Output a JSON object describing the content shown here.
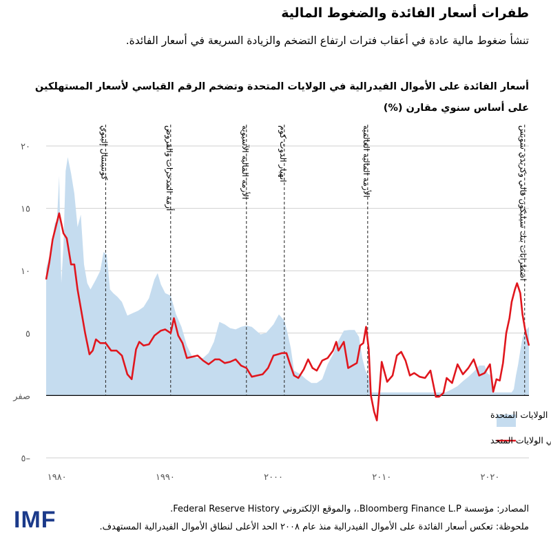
{
  "title": "طفرات أسعار الفائدة والضغوط المالية",
  "subtitle": "تنشأ ضغوط مالية عادة في أعقاب فترات ارتفاع التضخم والزيادة السريعة في أسعار الفائدة.",
  "sources": "المصادر: مؤسسة Bloomberg Finance L.P.، والموقع الإلكتروني Federal Reserve History.",
  "note": "ملحوظة: تعكس أسعار الفائدة على الأموال الفيدرالية منذ عام ٢٠٠٨ الحد الأعلى لنطاق الأموال الفيدرالية المستهدف.",
  "logo": "IMF",
  "colors": {
    "fed_funds_fill": "#c5dcef",
    "cpi_line": "#e0161d",
    "grid": "#cfcfcf",
    "event_line": "#333333"
  },
  "chart_data": {
    "type": "area",
    "title": "أسعار الفائدة على الأموال الفيدرالية في الولايات المتحدة وتضخم الرقم القياسي لأسعار المستهلكين على أساس سنوي مقارن (%)",
    "xlim": [
      1979.0,
      2023.6
    ],
    "ylim": [
      -5,
      20
    ],
    "yticks": [
      {
        "value": 20,
        "label": "٢٠"
      },
      {
        "value": 15,
        "label": "١٥"
      },
      {
        "value": 10,
        "label": "١٠"
      },
      {
        "value": 5,
        "label": "٥"
      },
      {
        "value": 0,
        "label": "صفر"
      },
      {
        "value": -5,
        "label": "٥–"
      }
    ],
    "xticks": [
      {
        "value": 1980,
        "label": "١٩٨٠"
      },
      {
        "value": 1990,
        "label": "١٩٩٠"
      },
      {
        "value": 2000,
        "label": "٢٠٠٠"
      },
      {
        "value": 2010,
        "label": "٢٠١٠"
      },
      {
        "value": 2020,
        "label": "٢٠٢٠"
      }
    ],
    "legend": [
      {
        "key": "fed_funds",
        "label": "أسعار الفائدة على الأموال الفيدرالية في الولايات المتحدة"
      },
      {
        "key": "cpi",
        "label": "الرقم القياسي لأسعار المستهلكين في الولايات المتحد"
      }
    ],
    "events": [
      {
        "year": 1984.5,
        "label": "كونتيننتال إلينوي"
      },
      {
        "year": 1990.5,
        "label": "أزمة المدخرات والقروض"
      },
      {
        "year": 1997.5,
        "label": "الأزمة المالية الآسيوية"
      },
      {
        "year": 2001.0,
        "label": "انهيار الدوت كوم"
      },
      {
        "year": 2008.7,
        "label": "الأزمة المالية العالمية"
      },
      {
        "year": 2023.2,
        "label": "اضطرابات بنك سيليكون فالي وكريدي سويس"
      }
    ],
    "series": [
      {
        "name": "fed_funds",
        "type": "area",
        "x": [
          1979.0,
          1979.4,
          1979.8,
          1980.0,
          1980.2,
          1980.4,
          1980.6,
          1980.8,
          1981.0,
          1981.3,
          1981.6,
          1981.9,
          1982.2,
          1982.5,
          1982.8,
          1983.1,
          1983.6,
          1984.0,
          1984.3,
          1984.6,
          1984.9,
          1985.2,
          1985.6,
          1986.0,
          1986.5,
          1987.0,
          1987.5,
          1988.0,
          1988.5,
          1989.0,
          1989.3,
          1989.6,
          1990.0,
          1990.5,
          1991.0,
          1991.5,
          1992.0,
          1992.5,
          1993.0,
          1993.5,
          1994.0,
          1994.5,
          1995.0,
          1995.5,
          1996.0,
          1996.5,
          1997.0,
          1997.5,
          1998.0,
          1998.8,
          1999.3,
          2000.0,
          2000.5,
          2001.0,
          2001.3,
          2001.6,
          2001.9,
          2002.5,
          2003.0,
          2003.5,
          2004.0,
          2004.5,
          2005.0,
          2005.5,
          2006.0,
          2006.5,
          2007.0,
          2007.5,
          2007.9,
          2008.2,
          2008.5,
          2008.8,
          2008.95,
          2015.9,
          2016.5,
          2017.0,
          2017.5,
          2018.0,
          2018.5,
          2019.0,
          2019.5,
          2019.8,
          2020.1,
          2020.25,
          2022.0,
          2022.2,
          2022.4,
          2022.6,
          2022.8,
          2023.0,
          2023.2,
          2023.6
        ],
        "y": [
          10.2,
          11.5,
          13.8,
          14.0,
          17.6,
          9.0,
          12.0,
          18.0,
          19.1,
          17.8,
          16.2,
          13.5,
          14.5,
          10.5,
          9.0,
          8.5,
          9.3,
          10.0,
          11.5,
          11.3,
          8.5,
          8.2,
          7.9,
          7.5,
          6.4,
          6.6,
          6.8,
          7.1,
          7.8,
          9.3,
          9.8,
          8.9,
          8.2,
          8.0,
          6.5,
          5.5,
          4.0,
          3.1,
          3.0,
          3.0,
          3.4,
          4.3,
          5.9,
          5.7,
          5.4,
          5.3,
          5.5,
          5.6,
          5.5,
          4.9,
          5.0,
          5.7,
          6.5,
          6.0,
          5.0,
          3.8,
          2.0,
          1.7,
          1.3,
          1.0,
          1.0,
          1.3,
          2.5,
          3.3,
          4.4,
          5.2,
          5.25,
          5.25,
          4.7,
          3.0,
          2.0,
          1.5,
          0.25,
          0.25,
          0.5,
          0.75,
          1.15,
          1.5,
          1.9,
          2.4,
          2.4,
          1.75,
          1.6,
          0.25,
          0.25,
          0.5,
          1.6,
          2.5,
          3.6,
          4.6,
          5.1,
          5.5
        ]
      },
      {
        "name": "cpi",
        "type": "line",
        "x": [
          1979.0,
          1979.3,
          1979.6,
          1980.0,
          1980.2,
          1980.6,
          1980.9,
          1981.3,
          1981.6,
          1981.9,
          1982.3,
          1982.6,
          1983.0,
          1983.3,
          1983.6,
          1984.0,
          1984.5,
          1985.0,
          1985.5,
          1986.0,
          1986.5,
          1986.9,
          1987.3,
          1987.6,
          1988.0,
          1988.5,
          1989.0,
          1989.6,
          1990.0,
          1990.5,
          1990.8,
          1991.2,
          1991.6,
          1992.0,
          1992.5,
          1993.0,
          1993.5,
          1994.0,
          1994.6,
          1995.0,
          1995.5,
          1996.0,
          1996.5,
          1997.0,
          1997.5,
          1998.0,
          1998.5,
          1999.0,
          1999.5,
          2000.0,
          2000.4,
          2000.8,
          2001.2,
          2001.5,
          2001.9,
          2002.3,
          2002.8,
          2003.2,
          2003.6,
          2004.0,
          2004.5,
          2005.0,
          2005.5,
          2005.8,
          2006.0,
          2006.5,
          2006.9,
          2007.3,
          2007.7,
          2008.0,
          2008.3,
          2008.55,
          2008.8,
          2009.0,
          2009.3,
          2009.55,
          2009.8,
          2010.0,
          2010.5,
          2011.0,
          2011.4,
          2011.8,
          2012.2,
          2012.6,
          2013.0,
          2013.5,
          2014.0,
          2014.5,
          2015.0,
          2015.3,
          2015.7,
          2016.0,
          2016.5,
          2017.0,
          2017.5,
          2018.0,
          2018.5,
          2019.0,
          2019.5,
          2020.0,
          2020.3,
          2020.6,
          2020.9,
          2021.2,
          2021.5,
          2021.8,
          2022.0,
          2022.3,
          2022.5,
          2022.8,
          2023.0,
          2023.3,
          2023.6
        ],
        "y": [
          9.3,
          10.7,
          12.5,
          13.9,
          14.6,
          13.0,
          12.6,
          10.5,
          10.5,
          8.5,
          6.5,
          5.0,
          3.3,
          3.6,
          4.5,
          4.2,
          4.2,
          3.6,
          3.6,
          3.2,
          1.7,
          1.3,
          3.7,
          4.3,
          4.0,
          4.1,
          4.8,
          5.2,
          5.3,
          5.0,
          6.2,
          4.8,
          4.2,
          3.0,
          3.1,
          3.2,
          2.8,
          2.5,
          2.9,
          2.9,
          2.6,
          2.7,
          2.9,
          2.4,
          2.2,
          1.5,
          1.6,
          1.7,
          2.2,
          3.2,
          3.3,
          3.4,
          3.4,
          2.6,
          1.6,
          1.4,
          2.1,
          2.9,
          2.2,
          2.0,
          2.8,
          3.0,
          3.6,
          4.3,
          3.6,
          4.3,
          2.2,
          2.4,
          2.6,
          4.0,
          4.2,
          5.5,
          3.7,
          0.0,
          -1.3,
          -2.0,
          0.5,
          2.7,
          1.1,
          1.6,
          3.2,
          3.5,
          2.8,
          1.6,
          1.8,
          1.5,
          1.4,
          2.0,
          -0.1,
          -0.1,
          0.2,
          1.4,
          1.0,
          2.5,
          1.7,
          2.2,
          2.9,
          1.6,
          1.8,
          2.5,
          0.3,
          1.3,
          1.2,
          2.6,
          5.0,
          6.2,
          7.5,
          8.5,
          9.0,
          8.2,
          6.5,
          5.0,
          4.0
        ]
      }
    ]
  }
}
